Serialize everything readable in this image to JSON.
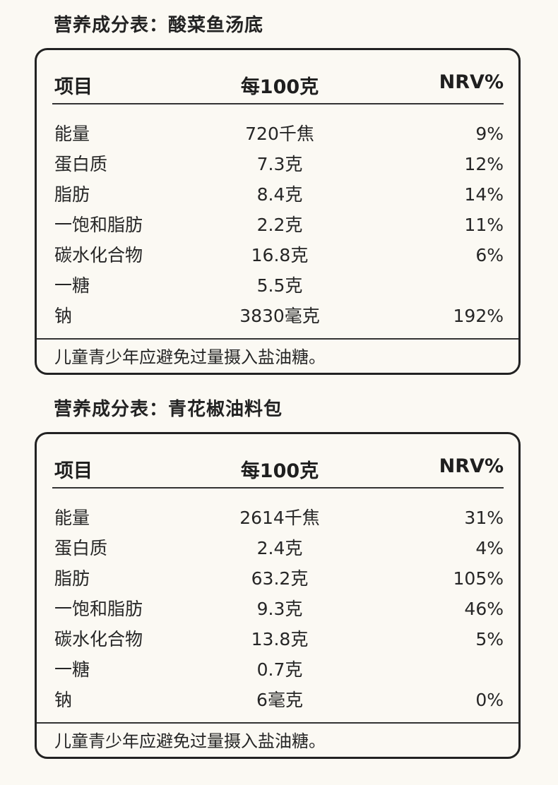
{
  "tables": [
    {
      "title": "营养成分表：酸菜鱼汤底",
      "headers": {
        "item": "项目",
        "per100g": "每100克",
        "nrv": "NRV%"
      },
      "rows": [
        {
          "item": "能量",
          "value": "720千焦",
          "nrv": "9%"
        },
        {
          "item": "蛋白质",
          "value": "7.3克",
          "nrv": "12%"
        },
        {
          "item": "脂肪",
          "value": "8.4克",
          "nrv": "14%"
        },
        {
          "item": "一饱和脂肪",
          "value": "2.2克",
          "nrv": "11%"
        },
        {
          "item": "碳水化合物",
          "value": "16.8克",
          "nrv": "6%"
        },
        {
          "item": "一糖",
          "value": "5.5克",
          "nrv": ""
        },
        {
          "item": "钠",
          "value": "3830毫克",
          "nrv": "192%"
        }
      ],
      "note": "儿童青少年应避免过量摄入盐油糖。"
    },
    {
      "title": "营养成分表：青花椒油料包",
      "headers": {
        "item": "项目",
        "per100g": "每100克",
        "nrv": "NRV%"
      },
      "rows": [
        {
          "item": "能量",
          "value": "2614千焦",
          "nrv": "31%"
        },
        {
          "item": "蛋白质",
          "value": "2.4克",
          "nrv": "4%"
        },
        {
          "item": "脂肪",
          "value": "63.2克",
          "nrv": "105%"
        },
        {
          "item": "一饱和脂肪",
          "value": "9.3克",
          "nrv": "46%"
        },
        {
          "item": "碳水化合物",
          "value": "13.8克",
          "nrv": "5%"
        },
        {
          "item": "一糖",
          "value": "0.7克",
          "nrv": ""
        },
        {
          "item": "钠",
          "value": "6毫克",
          "nrv": "0%"
        }
      ],
      "note": "儿童青少年应避免过量摄入盐油糖。"
    }
  ]
}
